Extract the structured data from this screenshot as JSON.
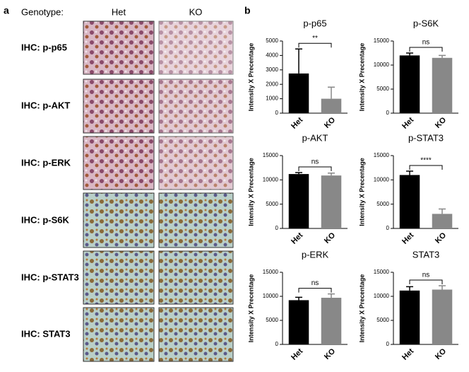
{
  "panel_a": {
    "label": "a",
    "genotype_label": "Genotype:",
    "columns": [
      "Het",
      "KO"
    ],
    "rows": [
      "IHC: p-p65",
      "IHC: p-AKT",
      "IHC: p-ERK",
      "IHC: p-S6K",
      "IHC: p-STAT3",
      "IHC: STAT3"
    ]
  },
  "panel_b_label": "b",
  "chart_data": [
    {
      "type": "bar",
      "title": "p-p65",
      "ylabel": "Intensity X Precentage",
      "categories": [
        "Het",
        "KO"
      ],
      "values": [
        2750,
        1000
      ],
      "errors": [
        1700,
        800
      ],
      "colors": [
        "#000000",
        "#888888"
      ],
      "ylim": [
        0,
        5000
      ],
      "yticks": [
        0,
        1000,
        2000,
        3000,
        4000,
        5000
      ],
      "annotation": "**"
    },
    {
      "type": "bar",
      "title": "p-S6K",
      "ylabel": "Intensity X Precentage",
      "categories": [
        "Het",
        "KO"
      ],
      "values": [
        12000,
        11500
      ],
      "errors": [
        500,
        500
      ],
      "colors": [
        "#000000",
        "#888888"
      ],
      "ylim": [
        0,
        15000
      ],
      "yticks": [
        0,
        5000,
        10000,
        15000
      ],
      "annotation": "ns"
    },
    {
      "type": "bar",
      "title": "p-AKT",
      "ylabel": "Intensity X Precentage",
      "categories": [
        "Het",
        "KO"
      ],
      "values": [
        11200,
        10900
      ],
      "errors": [
        300,
        500
      ],
      "colors": [
        "#000000",
        "#888888"
      ],
      "ylim": [
        0,
        15000
      ],
      "yticks": [
        0,
        5000,
        10000,
        15000
      ],
      "annotation": "ns"
    },
    {
      "type": "bar",
      "title": "p-STAT3",
      "ylabel": "Intensity X Precentage",
      "categories": [
        "Het",
        "KO"
      ],
      "values": [
        11000,
        3000
      ],
      "errors": [
        800,
        1000
      ],
      "colors": [
        "#000000",
        "#888888"
      ],
      "ylim": [
        0,
        15000
      ],
      "yticks": [
        0,
        5000,
        10000,
        15000
      ],
      "annotation": "****"
    },
    {
      "type": "bar",
      "title": "p-ERK",
      "ylabel": "Intensity X Precentage",
      "categories": [
        "Het",
        "KO"
      ],
      "values": [
        9200,
        9700
      ],
      "errors": [
        600,
        800
      ],
      "colors": [
        "#000000",
        "#888888"
      ],
      "ylim": [
        0,
        15000
      ],
      "yticks": [
        0,
        5000,
        10000,
        15000
      ],
      "annotation": "ns"
    },
    {
      "type": "bar",
      "title": "STAT3",
      "ylabel": "Intensity X Precentage",
      "categories": [
        "Het",
        "KO"
      ],
      "values": [
        11200,
        11400
      ],
      "errors": [
        800,
        800
      ],
      "colors": [
        "#000000",
        "#888888"
      ],
      "ylim": [
        0,
        15000
      ],
      "yticks": [
        0,
        5000,
        10000,
        15000
      ],
      "annotation": "ns"
    }
  ]
}
